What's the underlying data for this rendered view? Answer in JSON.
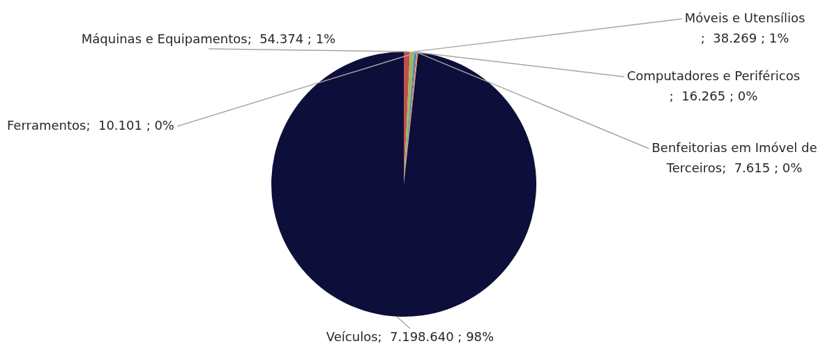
{
  "chart_data": {
    "type": "pie",
    "categories": [
      "Máquinas e Equipamentos",
      "Móveis e Utensílios",
      "Computadores e Periféricos",
      "Benfeitorias em Imóvel de Terceiros",
      "Ferramentos",
      "Veículos"
    ],
    "values": [
      54374,
      38269,
      16265,
      7615,
      10101,
      7198640
    ],
    "value_labels": [
      ";  54.374 ; 1%",
      ";  38.269 ; 1%",
      ";  16.265 ; 0%",
      ";  7.615 ; 0%",
      ";  10.101 ; 0%",
      ";  7.198.640 ; 98%"
    ],
    "colors": [
      "#c0504d",
      "#9bbb59",
      "#4f81bd",
      "#8064a2",
      "#f79646",
      "#0e0e3a"
    ],
    "legend": false
  }
}
